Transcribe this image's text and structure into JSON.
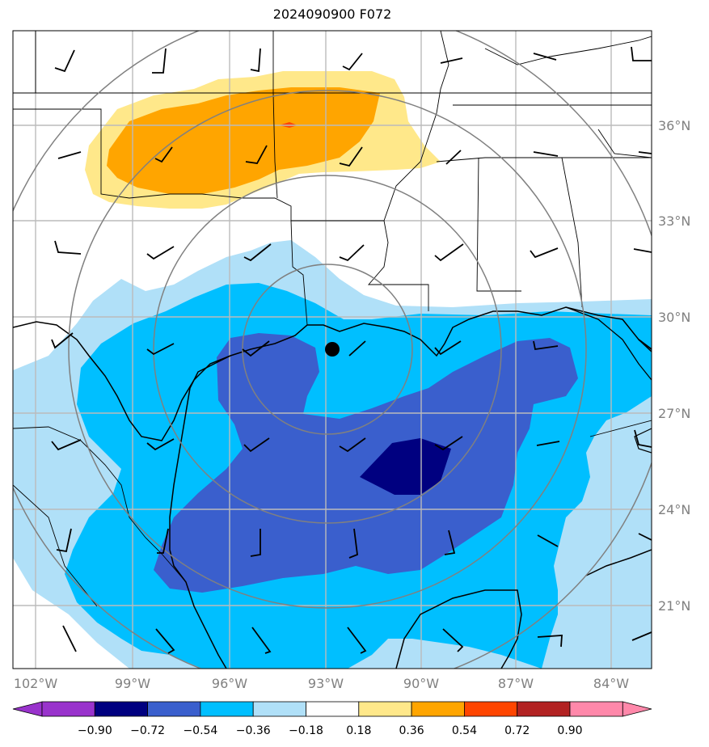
{
  "title": "2024090900 F072",
  "latitude_labels": [
    "36°N",
    "33°N",
    "30°N",
    "27°N",
    "24°N",
    "21°N"
  ],
  "longitude_labels": [
    "102°W",
    "99°W",
    "96°W",
    "93°W",
    "90°W",
    "87°W",
    "84°W"
  ],
  "colorbar": {
    "tick_labels": [
      "−0.90",
      "−0.72",
      "−0.54",
      "−0.36",
      "−0.18",
      "0.18",
      "0.36",
      "0.54",
      "0.72",
      "0.90"
    ],
    "colors": [
      "#9933cc",
      "#000080",
      "#3a5fcd",
      "#00bfff",
      "#b0e0f8",
      "#ffffff",
      "#ffe88a",
      "#ffa500",
      "#ff4500",
      "#b22222",
      "#ff88aa"
    ]
  },
  "marker": {
    "lon": -92.8,
    "lat": 28.9,
    "color": "#000000"
  },
  "range_rings": {
    "color": "#808080",
    "count": 4
  },
  "fill_colors": {
    "light_blue": "#b0e0f8",
    "blue": "#00bfff",
    "mid_blue": "#3a5fcd",
    "navy": "#000080",
    "light_yellow": "#ffe88a",
    "orange": "#ffa500",
    "red": "#ff4500"
  }
}
